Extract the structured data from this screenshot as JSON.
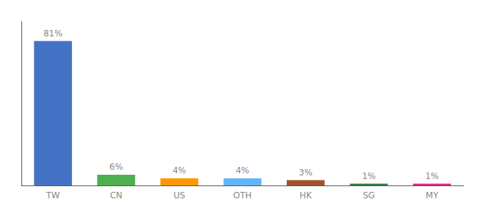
{
  "chart_data": {
    "type": "bar",
    "categories": [
      "TW",
      "CN",
      "US",
      "OTH",
      "HK",
      "SG",
      "MY"
    ],
    "values": [
      81,
      6,
      4,
      4,
      3,
      1,
      1
    ],
    "value_labels": [
      "81%",
      "6%",
      "4%",
      "4%",
      "3%",
      "1%",
      "1%"
    ],
    "colors": [
      "#4472C4",
      "#4CAF50",
      "#FF9800",
      "#64B5F6",
      "#A0522D",
      "#2E7D32",
      "#E91E8C"
    ],
    "data_labels": true,
    "ylim": [
      0,
      92
    ],
    "grid": false,
    "tick_labels": "x"
  }
}
